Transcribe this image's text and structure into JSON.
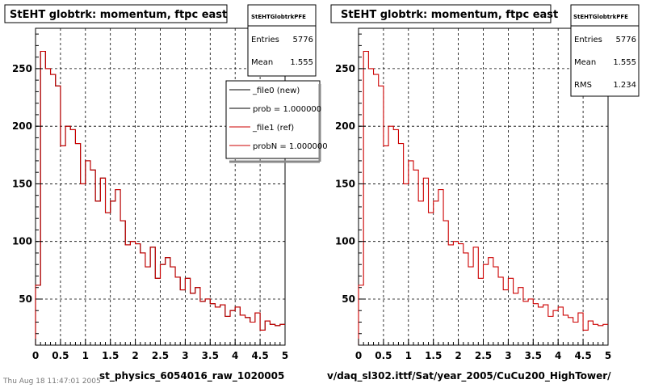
{
  "chart_data": [
    {
      "type": "histogram",
      "title": "StEHT globtrk: momentum, ftpc east",
      "xlabel": "st_physics_6054016_raw_1020005",
      "xlim": [
        0,
        5
      ],
      "ylim": [
        10,
        285
      ],
      "xticks": [
        "0",
        "0.5",
        "1",
        "1.5",
        "2",
        "2.5",
        "3",
        "3.5",
        "4",
        "4.5",
        "5"
      ],
      "yticks": [
        "50",
        "100",
        "150",
        "200",
        "250"
      ],
      "grid": true,
      "bins": 50,
      "stats": {
        "name": "StEHTGlobtrkPFE",
        "rows": [
          {
            "label": "Entries",
            "value": "5776"
          },
          {
            "label": "Mean",
            "value": "1.555"
          }
        ]
      },
      "legend": {
        "placement": "top-right",
        "entries": [
          {
            "label": "_file0 (new)",
            "color": "#000000"
          },
          {
            "label": "prob = 1.000000",
            "color": "#000000"
          },
          {
            "label": "_file1 (ref)",
            "color": "#cc0000"
          },
          {
            "label": "probN = 1.000000",
            "color": "#cc0000"
          }
        ]
      },
      "series": [
        {
          "color": "#000000",
          "values": [
            62,
            265,
            250,
            245,
            235,
            183,
            200,
            197,
            185,
            150,
            170,
            162,
            135,
            155,
            125,
            135,
            145,
            118,
            97,
            100,
            98,
            90,
            78,
            95,
            68,
            80,
            86,
            78,
            69,
            58,
            68,
            55,
            60,
            48,
            50,
            46,
            43,
            45,
            35,
            40,
            43,
            36,
            34,
            30,
            38,
            23,
            31,
            28,
            27,
            28
          ]
        },
        {
          "color": "#cc0000",
          "values": [
            62,
            265,
            250,
            245,
            235,
            183,
            200,
            197,
            185,
            150,
            170,
            162,
            135,
            155,
            125,
            135,
            145,
            118,
            97,
            100,
            98,
            90,
            78,
            95,
            68,
            80,
            86,
            78,
            69,
            58,
            68,
            55,
            60,
            48,
            50,
            46,
            43,
            45,
            35,
            40,
            43,
            36,
            34,
            30,
            38,
            23,
            31,
            28,
            27,
            28
          ]
        }
      ]
    },
    {
      "type": "histogram",
      "title": "StEHT globtrk: momentum, ftpc east",
      "xlabel": "v/daq_sl302.ittf/Sat/year_2005/CuCu200_HighTower/",
      "xlim": [
        0,
        5
      ],
      "ylim": [
        10,
        285
      ],
      "xticks": [
        "0",
        "0.5",
        "1",
        "1.5",
        "2",
        "2.5",
        "3",
        "3.5",
        "4",
        "4.5",
        "5"
      ],
      "yticks": [
        "50",
        "100",
        "150",
        "200",
        "250"
      ],
      "grid": true,
      "bins": 50,
      "stats": {
        "name": "StEHTGlobtrkPFE",
        "rows": [
          {
            "label": "Entries",
            "value": "5776"
          },
          {
            "label": "Mean",
            "value": "1.555"
          },
          {
            "label": "RMS",
            "value": "1.234"
          }
        ]
      },
      "series": [
        {
          "color": "#cc0000",
          "values": [
            62,
            265,
            250,
            245,
            235,
            183,
            200,
            197,
            185,
            150,
            170,
            162,
            135,
            155,
            125,
            135,
            145,
            118,
            97,
            100,
            98,
            90,
            78,
            95,
            68,
            80,
            86,
            78,
            69,
            58,
            68,
            55,
            60,
            48,
            50,
            46,
            43,
            45,
            35,
            40,
            43,
            36,
            34,
            30,
            38,
            23,
            31,
            28,
            27,
            28
          ]
        }
      ]
    }
  ],
  "footer": "Thu Aug 18 11:47:01 2005"
}
